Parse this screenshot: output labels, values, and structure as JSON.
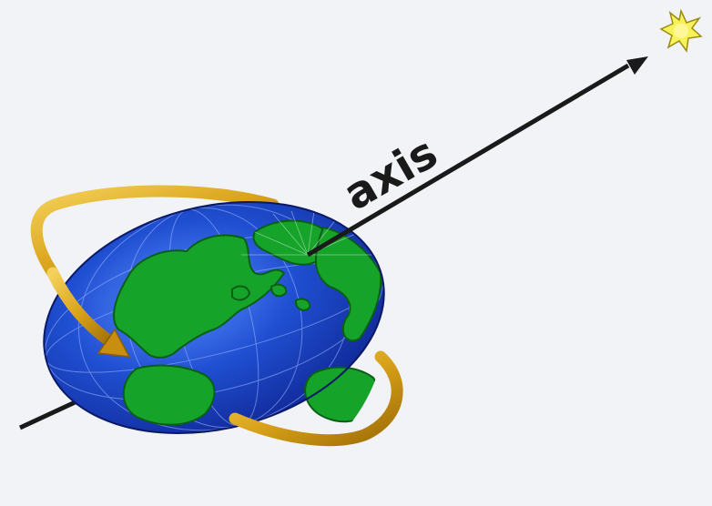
{
  "diagram": {
    "axis_label": "axis"
  },
  "colors": {
    "background": "#f2f3f6",
    "ocean": "#1f4fd1",
    "ocean_dark": "#0d1f8a",
    "land": "#16a32a",
    "land_outline": "#0b5e16",
    "rotation_arrow": "#d9a21a",
    "rotation_arrow_dark": "#9c6b05",
    "axis_line": "#1a1a1a",
    "sun": "#f6f35a"
  },
  "icons": {
    "sun": "sun-icon",
    "globe": "earth-globe-icon",
    "rotation": "rotation-arrow-icon"
  }
}
